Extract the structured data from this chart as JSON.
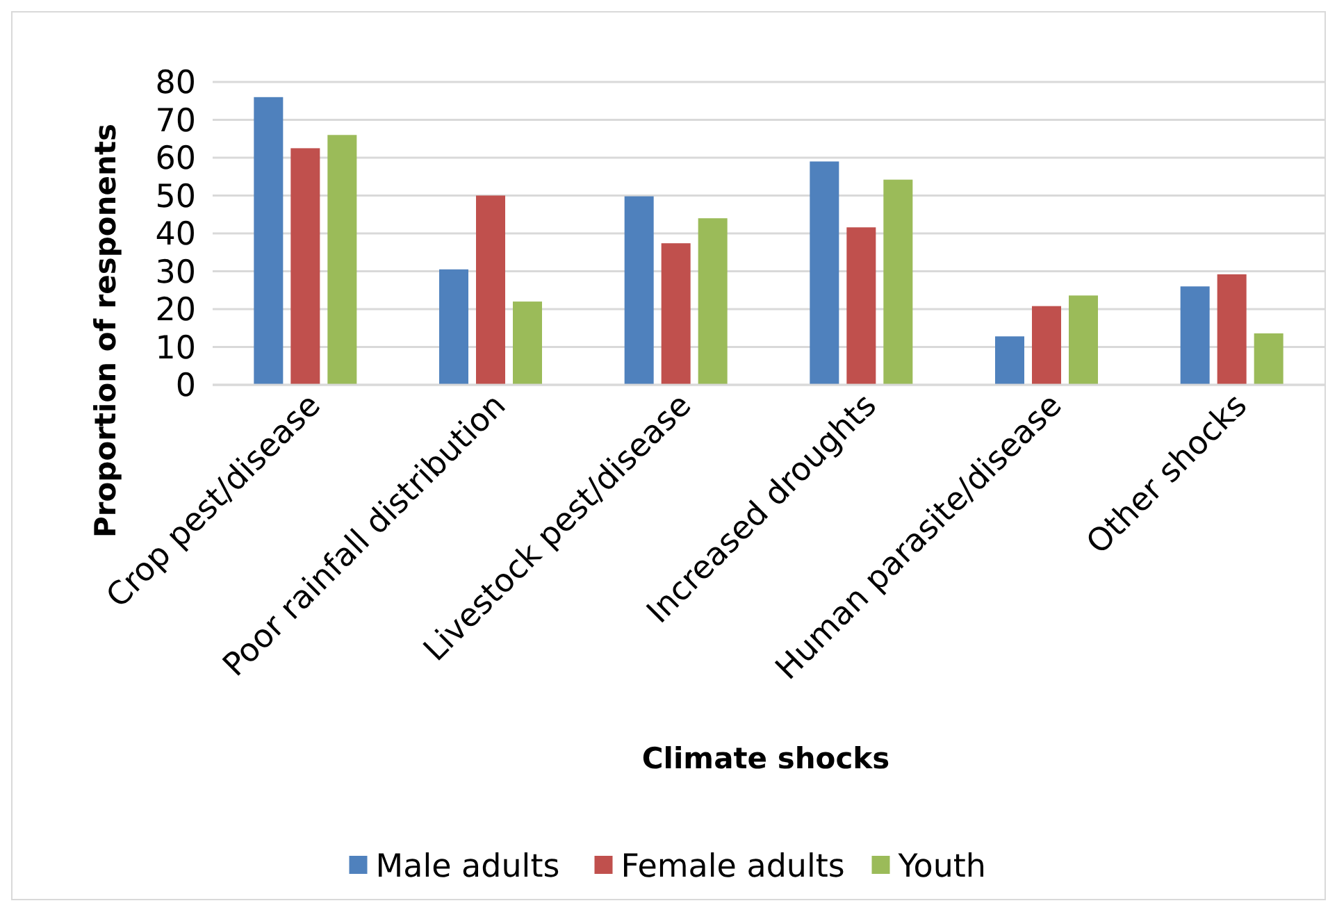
{
  "chart_data": {
    "type": "bar",
    "xlabel": "Climate shocks",
    "ylabel": "Proportion of responents",
    "categories": [
      "Crop pest/disease",
      "Poor rainfall distribution",
      "Livestock pest/disease",
      "Increased droughts",
      "Human parasite/disease",
      "Other shocks"
    ],
    "series": [
      {
        "name": "Male adults",
        "color": "#4f81bd",
        "values": [
          76,
          30.5,
          49.8,
          59,
          12.8,
          26
        ]
      },
      {
        "name": "Female adults",
        "color": "#c0504d",
        "values": [
          62.5,
          50,
          37.4,
          41.6,
          20.8,
          29.2
        ]
      },
      {
        "name": "Youth",
        "color": "#9bbb59",
        "values": [
          66,
          22,
          44,
          54.2,
          23.6,
          13.6
        ]
      }
    ],
    "ylim": [
      0,
      80
    ],
    "yticks": [
      0,
      10,
      20,
      30,
      40,
      50,
      60,
      70,
      80
    ],
    "grid": "y",
    "legend": "bottom"
  }
}
